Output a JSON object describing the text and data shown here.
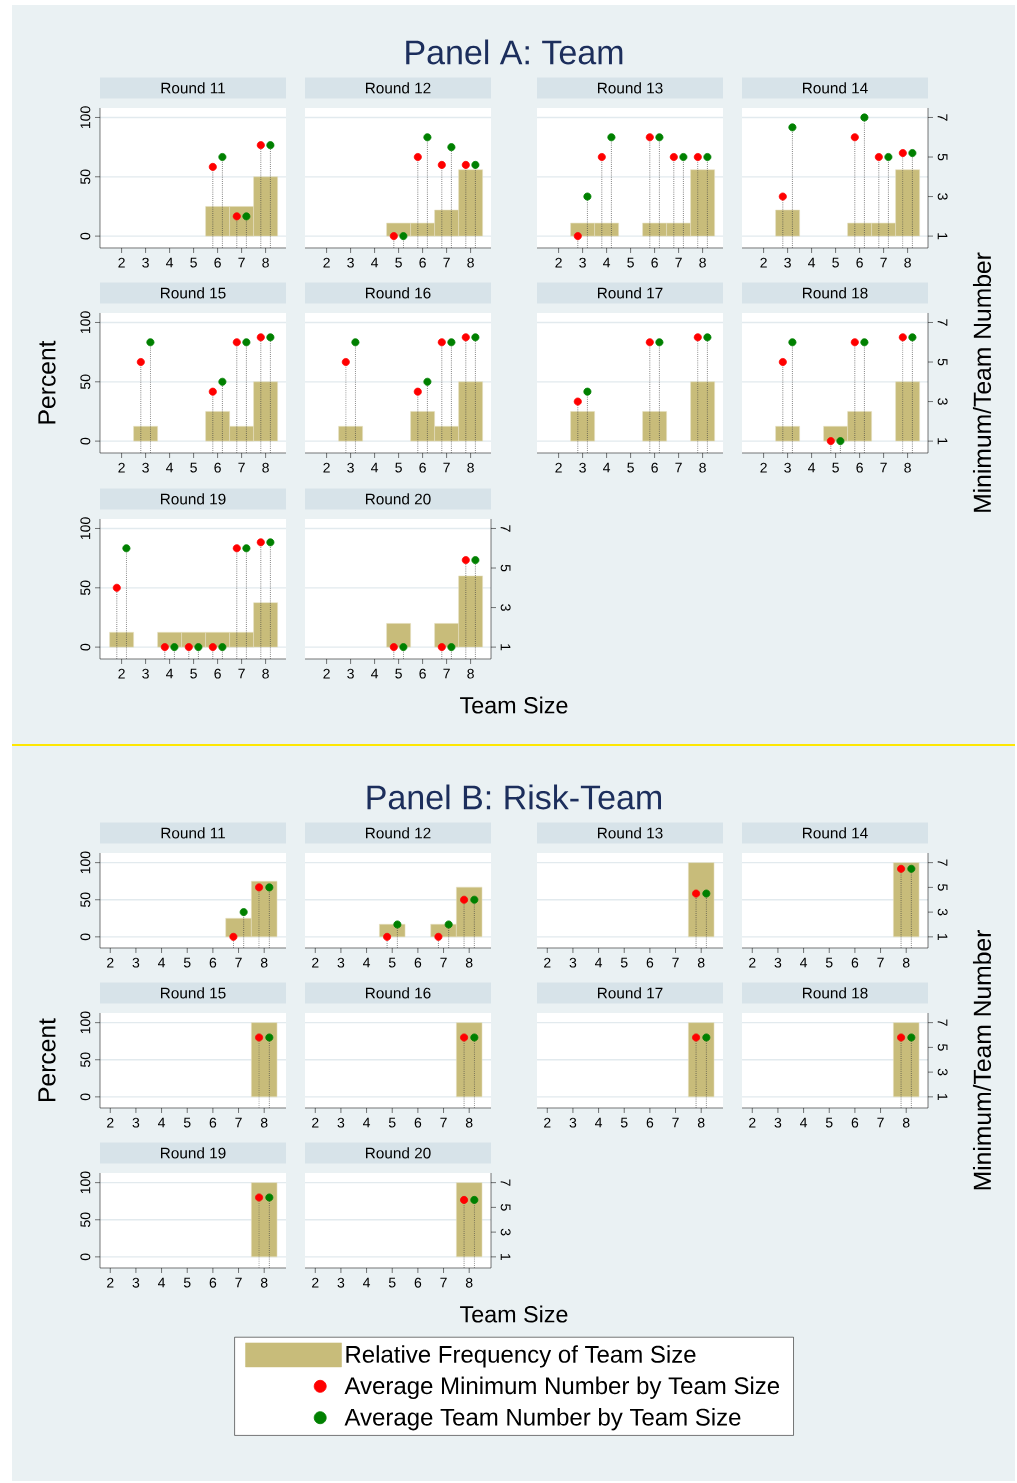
{
  "chart_data": [
    {
      "type": "bar",
      "title": "Round 11",
      "annotations": [
        "Panel A: Team"
      ],
      "xlim": [
        1.1,
        8.85
      ],
      "xticks": [
        2,
        3,
        4,
        5,
        6,
        7,
        8
      ],
      "ylim": [
        -10,
        108
      ],
      "yticks": [
        0,
        50,
        100
      ],
      "y2lim": [
        0.4,
        7.48
      ],
      "grid": "y",
      "marker": "circle",
      "line_style": "dotted",
      "tick_labels": [
        "x",
        "y"
      ],
      "series": [
        {
          "x": [
            6,
            7,
            8
          ],
          "values": [
            25,
            25,
            50
          ],
          "color": "#c8bc7a"
        },
        {
          "type": "lollipop",
          "axis": "y2",
          "x": [
            5.8,
            6.8,
            7.8
          ],
          "values": [
            4.5,
            2,
            5.6
          ],
          "color": "#ff0000"
        },
        {
          "type": "lollipop",
          "axis": "y2",
          "x": [
            6.2,
            7.2,
            8.2
          ],
          "values": [
            5,
            2,
            5.6
          ],
          "color": "#008000"
        }
      ]
    },
    {
      "type": "bar",
      "title": "Round 12",
      "xlim": [
        1.1,
        8.85
      ],
      "xticks": [
        2,
        3,
        4,
        5,
        6,
        7,
        8
      ],
      "ylim": [
        -10,
        108
      ],
      "y2lim": [
        0.4,
        7.48
      ],
      "grid": "y",
      "marker": "circle",
      "line_style": "dotted",
      "tick_labels": [
        "x"
      ],
      "series": [
        {
          "x": [
            5,
            6,
            7,
            8
          ],
          "values": [
            11,
            11,
            22,
            56
          ],
          "color": "#c8bc7a"
        },
        {
          "type": "lollipop",
          "axis": "y2",
          "x": [
            4.8,
            5.8,
            6.8,
            7.8
          ],
          "values": [
            1,
            5,
            4.6,
            4.6
          ],
          "color": "#ff0000"
        },
        {
          "type": "lollipop",
          "axis": "y2",
          "x": [
            5.2,
            6.2,
            7.2,
            8.2
          ],
          "values": [
            1,
            6,
            5.5,
            4.6
          ],
          "color": "#008000"
        }
      ]
    },
    {
      "type": "bar",
      "title": "Round 13",
      "xlim": [
        1.1,
        8.85
      ],
      "xticks": [
        2,
        3,
        4,
        5,
        6,
        7,
        8
      ],
      "ylim": [
        -10,
        108
      ],
      "y2lim": [
        0.4,
        7.48
      ],
      "grid": "y",
      "marker": "circle",
      "line_style": "dotted",
      "tick_labels": [
        "x"
      ],
      "series": [
        {
          "x": [
            3,
            4,
            6,
            7,
            8
          ],
          "values": [
            11,
            11,
            11,
            11,
            56
          ],
          "color": "#c8bc7a"
        },
        {
          "type": "lollipop",
          "axis": "y2",
          "x": [
            2.8,
            3.8,
            5.8,
            6.8,
            7.8
          ],
          "values": [
            1,
            5,
            6,
            5,
            5
          ],
          "color": "#ff0000"
        },
        {
          "type": "lollipop",
          "axis": "y2",
          "x": [
            3.2,
            4.2,
            6.2,
            7.2,
            8.2
          ],
          "values": [
            3,
            6,
            6,
            5,
            5
          ],
          "color": "#008000"
        }
      ]
    },
    {
      "type": "bar",
      "title": "Round 14",
      "xlim": [
        1.1,
        8.85
      ],
      "xticks": [
        2,
        3,
        4,
        5,
        6,
        7,
        8
      ],
      "ylim": [
        -10,
        108
      ],
      "y2lim": [
        0.4,
        7.48
      ],
      "y2ticks": [
        1,
        3,
        5,
        7
      ],
      "grid": "y",
      "marker": "circle",
      "line_style": "dotted",
      "tick_labels": [
        "x",
        "y2"
      ],
      "series": [
        {
          "x": [
            3,
            6,
            7,
            8
          ],
          "values": [
            22,
            11,
            11,
            56
          ],
          "color": "#c8bc7a"
        },
        {
          "type": "lollipop",
          "axis": "y2",
          "x": [
            2.8,
            5.8,
            6.8,
            7.8
          ],
          "values": [
            3,
            6,
            5,
            5.2
          ],
          "color": "#ff0000"
        },
        {
          "type": "lollipop",
          "axis": "y2",
          "x": [
            3.2,
            6.2,
            7.2,
            8.2
          ],
          "values": [
            6.5,
            7,
            5,
            5.2
          ],
          "color": "#008000"
        }
      ]
    },
    {
      "type": "bar",
      "title": "Round 15",
      "ylabel": "Percent",
      "xlim": [
        1.1,
        8.85
      ],
      "xticks": [
        2,
        3,
        4,
        5,
        6,
        7,
        8
      ],
      "ylim": [
        -10,
        108
      ],
      "yticks": [
        0,
        50,
        100
      ],
      "y2lim": [
        0.4,
        7.48
      ],
      "grid": "y",
      "marker": "circle",
      "line_style": "dotted",
      "tick_labels": [
        "x",
        "y"
      ],
      "series": [
        {
          "x": [
            3,
            6,
            7,
            8
          ],
          "values": [
            12.5,
            25,
            12.5,
            50
          ],
          "color": "#c8bc7a"
        },
        {
          "type": "lollipop",
          "axis": "y2",
          "x": [
            2.8,
            5.8,
            6.8,
            7.8
          ],
          "values": [
            5,
            3.5,
            6,
            6.25
          ],
          "color": "#ff0000"
        },
        {
          "type": "lollipop",
          "axis": "y2",
          "x": [
            3.2,
            6.2,
            7.2,
            8.2
          ],
          "values": [
            6,
            4,
            6,
            6.25
          ],
          "color": "#008000"
        }
      ]
    },
    {
      "type": "bar",
      "title": "Round 16",
      "xlim": [
        1.1,
        8.85
      ],
      "xticks": [
        2,
        3,
        4,
        5,
        6,
        7,
        8
      ],
      "ylim": [
        -10,
        108
      ],
      "y2lim": [
        0.4,
        7.48
      ],
      "grid": "y",
      "marker": "circle",
      "line_style": "dotted",
      "tick_labels": [
        "x"
      ],
      "series": [
        {
          "x": [
            3,
            6,
            7,
            8
          ],
          "values": [
            12.5,
            25,
            12.5,
            50
          ],
          "color": "#c8bc7a"
        },
        {
          "type": "lollipop",
          "axis": "y2",
          "x": [
            2.8,
            5.8,
            6.8,
            7.8
          ],
          "values": [
            5,
            3.5,
            6,
            6.25
          ],
          "color": "#ff0000"
        },
        {
          "type": "lollipop",
          "axis": "y2",
          "x": [
            3.2,
            6.2,
            7.2,
            8.2
          ],
          "values": [
            6,
            4,
            6,
            6.25
          ],
          "color": "#008000"
        }
      ]
    },
    {
      "type": "bar",
      "title": "Round 17",
      "xlim": [
        1.1,
        8.85
      ],
      "xticks": [
        2,
        3,
        4,
        5,
        6,
        7,
        8
      ],
      "ylim": [
        -10,
        108
      ],
      "y2lim": [
        0.4,
        7.48
      ],
      "grid": "y",
      "marker": "circle",
      "line_style": "dotted",
      "tick_labels": [
        "x"
      ],
      "series": [
        {
          "x": [
            3,
            6,
            8
          ],
          "values": [
            25,
            25,
            50
          ],
          "color": "#c8bc7a"
        },
        {
          "type": "lollipop",
          "axis": "y2",
          "x": [
            2.8,
            5.8,
            7.8
          ],
          "values": [
            3,
            6,
            6.25
          ],
          "color": "#ff0000"
        },
        {
          "type": "lollipop",
          "axis": "y2",
          "x": [
            3.2,
            6.2,
            8.2
          ],
          "values": [
            3.5,
            6,
            6.25
          ],
          "color": "#008000"
        }
      ]
    },
    {
      "type": "bar",
      "title": "Round 18",
      "y2label": "Minimum/Team Number",
      "xlim": [
        1.1,
        8.85
      ],
      "xticks": [
        2,
        3,
        4,
        5,
        6,
        7,
        8
      ],
      "ylim": [
        -10,
        108
      ],
      "y2lim": [
        0.4,
        7.48
      ],
      "y2ticks": [
        1,
        3,
        5,
        7
      ],
      "grid": "y",
      "marker": "circle",
      "line_style": "dotted",
      "tick_labels": [
        "x",
        "y2"
      ],
      "series": [
        {
          "x": [
            3,
            5,
            6,
            8
          ],
          "values": [
            12.5,
            12.5,
            25,
            50
          ],
          "color": "#c8bc7a"
        },
        {
          "type": "lollipop",
          "axis": "y2",
          "x": [
            2.8,
            4.8,
            5.8,
            7.8
          ],
          "values": [
            5,
            1,
            6,
            6.25
          ],
          "color": "#ff0000"
        },
        {
          "type": "lollipop",
          "axis": "y2",
          "x": [
            3.2,
            5.2,
            6.2,
            8.2
          ],
          "values": [
            6,
            1,
            6,
            6.25
          ],
          "color": "#008000"
        }
      ]
    },
    {
      "type": "bar",
      "title": "Round 19",
      "xlim": [
        1.1,
        8.85
      ],
      "xticks": [
        2,
        3,
        4,
        5,
        6,
        7,
        8
      ],
      "ylim": [
        -10,
        108
      ],
      "yticks": [
        0,
        50,
        100
      ],
      "y2lim": [
        0.4,
        7.48
      ],
      "grid": "y",
      "marker": "circle",
      "line_style": "dotted",
      "tick_labels": [
        "x",
        "y"
      ],
      "series": [
        {
          "x": [
            2,
            4,
            5,
            6,
            7,
            8
          ],
          "values": [
            12.5,
            12.5,
            12.5,
            12.5,
            12.5,
            37.5
          ],
          "color": "#c8bc7a"
        },
        {
          "type": "lollipop",
          "axis": "y2",
          "x": [
            1.8,
            3.8,
            4.8,
            5.8,
            6.8,
            7.8
          ],
          "values": [
            4,
            1,
            1,
            1,
            6,
            6.3
          ],
          "color": "#ff0000"
        },
        {
          "type": "lollipop",
          "axis": "y2",
          "x": [
            2.2,
            4.2,
            5.2,
            6.2,
            7.2,
            8.2
          ],
          "values": [
            6,
            1,
            1,
            1,
            6,
            6.3
          ],
          "color": "#008000"
        }
      ]
    },
    {
      "type": "bar",
      "title": "Round 20",
      "xlabel": "Team Size",
      "xlim": [
        1.1,
        8.85
      ],
      "xticks": [
        2,
        3,
        4,
        5,
        6,
        7,
        8
      ],
      "ylim": [
        -10,
        108
      ],
      "y2lim": [
        0.4,
        7.48
      ],
      "y2ticks": [
        1,
        3,
        5,
        7
      ],
      "grid": "y",
      "marker": "circle",
      "line_style": "dotted",
      "tick_labels": [
        "x",
        "y2"
      ],
      "series": [
        {
          "x": [
            5,
            7,
            8
          ],
          "values": [
            20,
            20,
            60
          ],
          "color": "#c8bc7a"
        },
        {
          "type": "lollipop",
          "axis": "y2",
          "x": [
            4.8,
            6.8,
            7.8
          ],
          "values": [
            1,
            1,
            5.4
          ],
          "color": "#ff0000"
        },
        {
          "type": "lollipop",
          "axis": "y2",
          "x": [
            5.2,
            7.2,
            8.2
          ],
          "values": [
            1,
            1,
            5.4
          ],
          "color": "#008000"
        }
      ]
    },
    {
      "type": "bar",
      "title": "Round 11",
      "annotations": [
        "Panel B: Risk-Team"
      ],
      "xlim": [
        1.6,
        8.85
      ],
      "xticks": [
        2,
        3,
        4,
        5,
        6,
        7,
        8
      ],
      "ylim": [
        -15,
        113
      ],
      "yticks": [
        0,
        50,
        100
      ],
      "y2lim": [
        0.1,
        7.78
      ],
      "grid": "y",
      "marker": "circle",
      "line_style": "dotted",
      "tick_labels": [
        "x",
        "y"
      ],
      "series": [
        {
          "x": [
            7,
            8
          ],
          "values": [
            25,
            75
          ],
          "color": "#c8bc7a"
        },
        {
          "type": "lollipop",
          "axis": "y2",
          "x": [
            6.8,
            7.8
          ],
          "values": [
            1,
            5
          ],
          "color": "#ff0000"
        },
        {
          "type": "lollipop",
          "axis": "y2",
          "x": [
            7.2,
            8.2
          ],
          "values": [
            3,
            5
          ],
          "color": "#008000"
        }
      ]
    },
    {
      "type": "bar",
      "title": "Round 12",
      "xlim": [
        1.6,
        8.85
      ],
      "xticks": [
        2,
        3,
        4,
        5,
        6,
        7,
        8
      ],
      "ylim": [
        -15,
        113
      ],
      "y2lim": [
        0.1,
        7.78
      ],
      "grid": "y",
      "marker": "circle",
      "line_style": "dotted",
      "tick_labels": [
        "x"
      ],
      "series": [
        {
          "x": [
            5,
            7,
            8
          ],
          "values": [
            17,
            17,
            67
          ],
          "color": "#c8bc7a"
        },
        {
          "type": "lollipop",
          "axis": "y2",
          "x": [
            4.8,
            6.8,
            7.8
          ],
          "values": [
            1,
            1,
            4
          ],
          "color": "#ff0000"
        },
        {
          "type": "lollipop",
          "axis": "y2",
          "x": [
            5.2,
            7.2,
            8.2
          ],
          "values": [
            2,
            2,
            4
          ],
          "color": "#008000"
        }
      ]
    },
    {
      "type": "bar",
      "title": "Round 13",
      "xlim": [
        1.6,
        8.85
      ],
      "xticks": [
        2,
        3,
        4,
        5,
        6,
        7,
        8
      ],
      "ylim": [
        -15,
        113
      ],
      "y2lim": [
        0.1,
        7.78
      ],
      "grid": "y",
      "marker": "circle",
      "line_style": "dotted",
      "tick_labels": [
        "x"
      ],
      "series": [
        {
          "x": [
            8
          ],
          "values": [
            100
          ],
          "color": "#c8bc7a"
        },
        {
          "type": "lollipop",
          "axis": "y2",
          "x": [
            7.8
          ],
          "values": [
            4.5
          ],
          "color": "#ff0000"
        },
        {
          "type": "lollipop",
          "axis": "y2",
          "x": [
            8.2
          ],
          "values": [
            4.5
          ],
          "color": "#008000"
        }
      ]
    },
    {
      "type": "bar",
      "title": "Round 14",
      "xlim": [
        1.6,
        8.85
      ],
      "xticks": [
        2,
        3,
        4,
        5,
        6,
        7,
        8
      ],
      "ylim": [
        -15,
        113
      ],
      "y2lim": [
        0.1,
        7.78
      ],
      "y2ticks": [
        1,
        3,
        5,
        7
      ],
      "grid": "y",
      "marker": "circle",
      "line_style": "dotted",
      "tick_labels": [
        "x",
        "y2"
      ],
      "series": [
        {
          "x": [
            8
          ],
          "values": [
            100
          ],
          "color": "#c8bc7a"
        },
        {
          "type": "lollipop",
          "axis": "y2",
          "x": [
            7.8
          ],
          "values": [
            6.5
          ],
          "color": "#ff0000"
        },
        {
          "type": "lollipop",
          "axis": "y2",
          "x": [
            8.2
          ],
          "values": [
            6.5
          ],
          "color": "#008000"
        }
      ]
    },
    {
      "type": "bar",
      "title": "Round 15",
      "ylabel": "Percent",
      "xlim": [
        1.6,
        8.85
      ],
      "xticks": [
        2,
        3,
        4,
        5,
        6,
        7,
        8
      ],
      "ylim": [
        -15,
        113
      ],
      "yticks": [
        0,
        50,
        100
      ],
      "y2lim": [
        0.1,
        7.78
      ],
      "grid": "y",
      "marker": "circle",
      "line_style": "dotted",
      "tick_labels": [
        "x",
        "y"
      ],
      "series": [
        {
          "x": [
            8
          ],
          "values": [
            100
          ],
          "color": "#c8bc7a"
        },
        {
          "type": "lollipop",
          "axis": "y2",
          "x": [
            7.8
          ],
          "values": [
            5.8
          ],
          "color": "#ff0000"
        },
        {
          "type": "lollipop",
          "axis": "y2",
          "x": [
            8.2
          ],
          "values": [
            5.8
          ],
          "color": "#008000"
        }
      ]
    },
    {
      "type": "bar",
      "title": "Round 16",
      "xlim": [
        1.6,
        8.85
      ],
      "xticks": [
        2,
        3,
        4,
        5,
        6,
        7,
        8
      ],
      "ylim": [
        -15,
        113
      ],
      "y2lim": [
        0.1,
        7.78
      ],
      "grid": "y",
      "marker": "circle",
      "line_style": "dotted",
      "tick_labels": [
        "x"
      ],
      "series": [
        {
          "x": [
            8
          ],
          "values": [
            100
          ],
          "color": "#c8bc7a"
        },
        {
          "type": "lollipop",
          "axis": "y2",
          "x": [
            7.8
          ],
          "values": [
            5.8
          ],
          "color": "#ff0000"
        },
        {
          "type": "lollipop",
          "axis": "y2",
          "x": [
            8.2
          ],
          "values": [
            5.8
          ],
          "color": "#008000"
        }
      ]
    },
    {
      "type": "bar",
      "title": "Round 17",
      "xlim": [
        1.6,
        8.85
      ],
      "xticks": [
        2,
        3,
        4,
        5,
        6,
        7,
        8
      ],
      "ylim": [
        -15,
        113
      ],
      "y2lim": [
        0.1,
        7.78
      ],
      "grid": "y",
      "marker": "circle",
      "line_style": "dotted",
      "tick_labels": [
        "x"
      ],
      "series": [
        {
          "x": [
            8
          ],
          "values": [
            100
          ],
          "color": "#c8bc7a"
        },
        {
          "type": "lollipop",
          "axis": "y2",
          "x": [
            7.8
          ],
          "values": [
            5.8
          ],
          "color": "#ff0000"
        },
        {
          "type": "lollipop",
          "axis": "y2",
          "x": [
            8.2
          ],
          "values": [
            5.8
          ],
          "color": "#008000"
        }
      ]
    },
    {
      "type": "bar",
      "title": "Round 18",
      "y2label": "Minimum/Team Number",
      "xlim": [
        1.6,
        8.85
      ],
      "xticks": [
        2,
        3,
        4,
        5,
        6,
        7,
        8
      ],
      "ylim": [
        -15,
        113
      ],
      "y2lim": [
        0.1,
        7.78
      ],
      "y2ticks": [
        1,
        3,
        5,
        7
      ],
      "grid": "y",
      "marker": "circle",
      "line_style": "dotted",
      "tick_labels": [
        "x",
        "y2"
      ],
      "series": [
        {
          "x": [
            8
          ],
          "values": [
            100
          ],
          "color": "#c8bc7a"
        },
        {
          "type": "lollipop",
          "axis": "y2",
          "x": [
            7.8
          ],
          "values": [
            5.8
          ],
          "color": "#ff0000"
        },
        {
          "type": "lollipop",
          "axis": "y2",
          "x": [
            8.2
          ],
          "values": [
            5.8
          ],
          "color": "#008000"
        }
      ]
    },
    {
      "type": "bar",
      "title": "Round 19",
      "xlim": [
        1.6,
        8.85
      ],
      "xticks": [
        2,
        3,
        4,
        5,
        6,
        7,
        8
      ],
      "ylim": [
        -15,
        113
      ],
      "yticks": [
        0,
        50,
        100
      ],
      "y2lim": [
        0.1,
        7.78
      ],
      "grid": "y",
      "marker": "circle",
      "line_style": "dotted",
      "tick_labels": [
        "x",
        "y"
      ],
      "series": [
        {
          "x": [
            8
          ],
          "values": [
            100
          ],
          "color": "#c8bc7a"
        },
        {
          "type": "lollipop",
          "axis": "y2",
          "x": [
            7.8
          ],
          "values": [
            5.8
          ],
          "color": "#ff0000"
        },
        {
          "type": "lollipop",
          "axis": "y2",
          "x": [
            8.2
          ],
          "values": [
            5.8
          ],
          "color": "#008000"
        }
      ]
    },
    {
      "type": "bar",
      "title": "Round 20",
      "xlabel": "Team Size",
      "legend": "bottom",
      "xlim": [
        1.6,
        8.85
      ],
      "xticks": [
        2,
        3,
        4,
        5,
        6,
        7,
        8
      ],
      "ylim": [
        -15,
        113
      ],
      "y2lim": [
        0.1,
        7.78
      ],
      "y2ticks": [
        1,
        3,
        5,
        7
      ],
      "grid": "y",
      "marker": "circle",
      "line_style": "dotted",
      "tick_labels": [
        "x",
        "y2"
      ],
      "series": [
        {
          "name": "Relative Frequency of Team Size",
          "x": [
            8
          ],
          "values": [
            100
          ],
          "color": "#c8bc7a"
        },
        {
          "name": "Average Minimum Number by Team Size",
          "type": "lollipop",
          "axis": "y2",
          "x": [
            7.8
          ],
          "values": [
            5.6
          ],
          "color": "#ff0000"
        },
        {
          "name": "Average Team Number by Team Size",
          "type": "lollipop",
          "axis": "y2",
          "x": [
            8.2
          ],
          "values": [
            5.6
          ],
          "color": "#008000"
        }
      ]
    }
  ]
}
